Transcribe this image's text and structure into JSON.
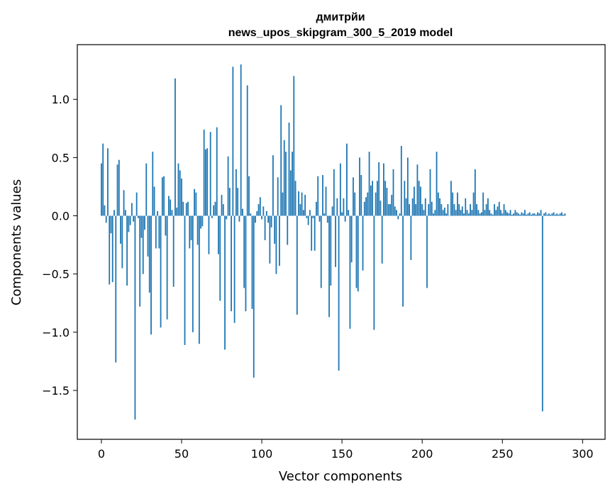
{
  "chart_data": {
    "type": "bar",
    "title": "дмитрйи",
    "subtitle": "news_upos_skipgram_300_5_2019 model",
    "xlabel": "Vector components",
    "ylabel": "Components values",
    "xlim": [
      -15,
      314
    ],
    "ylim": [
      -1.92,
      1.47
    ],
    "xticks": [
      0,
      50,
      100,
      150,
      200,
      250,
      300
    ],
    "xtick_labels": [
      "0",
      "50",
      "100",
      "150",
      "200",
      "250",
      "300"
    ],
    "yticks": [
      -1.5,
      -1.0,
      -0.5,
      0.0,
      0.5,
      1.0
    ],
    "ytick_labels": [
      "−1.5",
      "−1.0",
      "−0.5",
      "0.0",
      "0.5",
      "1.0"
    ],
    "grid": false,
    "bar_color": "#1f77b4",
    "values": [
      0.45,
      0.62,
      0.09,
      -0.06,
      0.58,
      -0.59,
      -0.15,
      -0.57,
      0.05,
      -1.26,
      0.44,
      0.48,
      -0.24,
      -0.45,
      0.22,
      0.05,
      -0.6,
      -0.14,
      -0.08,
      0.11,
      -0.05,
      -1.75,
      0.2,
      -0.02,
      -0.78,
      -0.19,
      -0.5,
      -0.12,
      0.45,
      -0.35,
      -0.66,
      -1.02,
      0.55,
      0.25,
      -0.28,
      0.04,
      -0.28,
      -0.96,
      0.33,
      0.34,
      -0.17,
      -0.89,
      0.17,
      0.14,
      0.05,
      -0.61,
      1.18,
      0.07,
      0.45,
      0.39,
      0.32,
      0.12,
      -1.11,
      0.11,
      0.12,
      -0.28,
      -0.21,
      -1.0,
      0.23,
      0.2,
      -0.25,
      -1.1,
      -0.11,
      -0.09,
      0.74,
      0.57,
      0.58,
      -0.33,
      0.72,
      -0.02,
      0.09,
      0.12,
      0.76,
      -0.33,
      -0.73,
      0.18,
      0.1,
      -1.15,
      -0.03,
      0.51,
      0.24,
      -0.82,
      1.28,
      -0.92,
      0.4,
      0.24,
      -0.05,
      1.3,
      0.06,
      -0.62,
      -0.82,
      1.12,
      0.34,
      0.02,
      -0.8,
      -1.39,
      -0.06,
      0.04,
      0.1,
      0.16,
      -0.03,
      0.08,
      -0.21,
      0.04,
      -0.06,
      -0.41,
      -0.1,
      0.52,
      -0.24,
      -0.5,
      0.33,
      -0.43,
      0.95,
      0.2,
      0.65,
      0.55,
      -0.25,
      0.8,
      0.39,
      0.55,
      1.2,
      0.3,
      -0.85,
      0.21,
      0.1,
      0.2,
      0.05,
      0.18,
      -0.02,
      -0.08,
      0.05,
      -0.3,
      -0.02,
      -0.3,
      0.12,
      0.34,
      -0.05,
      -0.62,
      0.35,
      0.02,
      0.25,
      -0.06,
      -0.87,
      -0.6,
      0.08,
      0.4,
      -0.44,
      0.15,
      -1.33,
      0.45,
      0.03,
      0.15,
      -0.05,
      0.62,
      0.05,
      -0.97,
      -0.4,
      0.33,
      0.2,
      -0.62,
      -0.65,
      0.5,
      0.35,
      -0.47,
      0.12,
      0.16,
      0.2,
      0.55,
      0.26,
      0.3,
      -0.98,
      0.2,
      0.3,
      0.46,
      0.13,
      -0.41,
      0.45,
      0.3,
      0.24,
      0.1,
      0.1,
      0.18,
      0.4,
      0.08,
      0.05,
      -0.03,
      0.02,
      0.6,
      -0.78,
      0.3,
      0.15,
      0.5,
      0.1,
      -0.38,
      0.15,
      0.25,
      0.1,
      0.44,
      0.3,
      0.25,
      0.1,
      0.05,
      0.15,
      -0.62,
      0.1,
      0.4,
      0.12,
      0.02,
      0.05,
      0.55,
      0.2,
      0.15,
      0.1,
      0.05,
      0.07,
      0.02,
      0.1,
      0.0,
      0.3,
      0.2,
      0.1,
      0.05,
      0.2,
      0.1,
      0.05,
      0.08,
      0.02,
      0.15,
      0.05,
      0.02,
      0.1,
      0.05,
      0.2,
      0.4,
      0.1,
      0.05,
      0.02,
      0.03,
      0.2,
      0.05,
      0.1,
      0.15,
      0.05,
      0.02,
      0.01,
      0.1,
      0.05,
      0.08,
      0.12,
      0.05,
      0.02,
      0.1,
      0.05,
      0.03,
      0.02,
      0.05,
      0.01,
      0.02,
      0.05,
      0.03,
      0.02,
      0.01,
      0.03,
      0.02,
      0.05,
      0.01,
      0.02,
      0.03,
      0.01,
      0.02,
      0.02,
      0.01,
      0.03,
      0.02,
      0.05,
      -1.68,
      0.02,
      0.03,
      0.01,
      0.02,
      0.01,
      0.02,
      0.03,
      0.01,
      0.02,
      0.01,
      0.02,
      0.03,
      0.01,
      0.02
    ]
  }
}
